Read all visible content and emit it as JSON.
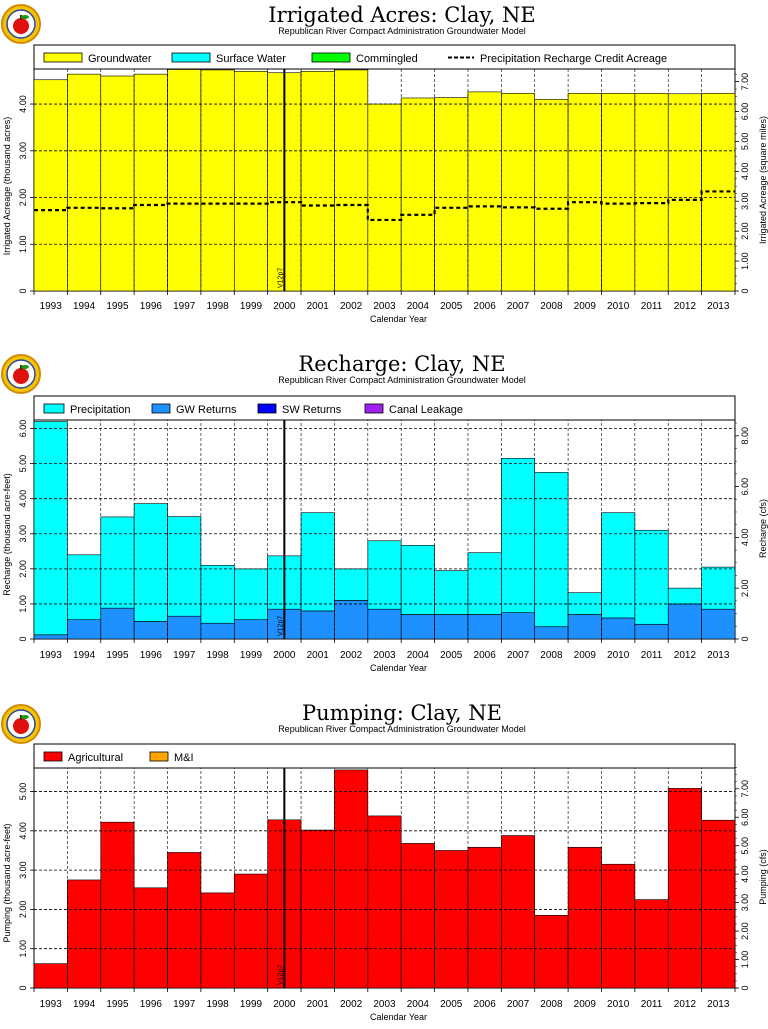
{
  "chart_data": [
    {
      "type": "bar",
      "title": "Irrigated Acres: Clay, NE",
      "subtitle": "Republican River Compact Administration Groundwater Model",
      "xlabel": "Calendar Year",
      "ylabel": "Irrigated Acreage (thousand acres)",
      "y2label": "Irrigated Acreage (square miles)",
      "ylim": [
        0,
        4.75
      ],
      "y2lim": [
        0,
        7.42
      ],
      "yticks": [
        0,
        1.0,
        2.0,
        3.0,
        4.0
      ],
      "ytick_labels": [
        "0",
        "1.00",
        "2.00",
        "3.00",
        "4.00"
      ],
      "y2ticks": [
        0,
        1,
        2,
        3,
        4,
        5,
        6,
        7
      ],
      "y2tick_labels": [
        "0",
        "1.00",
        "2.00",
        "3.00",
        "4.00",
        "5.00",
        "6.00",
        "7.00"
      ],
      "categories": [
        "1993",
        "1994",
        "1995",
        "1996",
        "1997",
        "1998",
        "1999",
        "2000",
        "2001",
        "2002",
        "2003",
        "2004",
        "2005",
        "2006",
        "2007",
        "2008",
        "2009",
        "2010",
        "2011",
        "2012",
        "2013"
      ],
      "legend_position": "top",
      "grid": true,
      "marker": {
        "label": "V12p7",
        "x_fraction": 0.5,
        "category": "2000"
      },
      "series": [
        {
          "name": "Groundwater",
          "color": "#ffff00",
          "values": [
            4.52,
            4.64,
            4.6,
            4.64,
            4.74,
            4.73,
            4.7,
            4.67,
            4.7,
            4.73,
            4.0,
            4.13,
            4.14,
            4.26,
            4.23,
            4.1,
            4.23,
            4.23,
            4.23,
            4.22,
            4.23
          ]
        },
        {
          "name": "Surface Water",
          "color": "#00ffff",
          "values": [
            0,
            0,
            0,
            0,
            0,
            0,
            0,
            0,
            0,
            0,
            0,
            0,
            0,
            0,
            0,
            0,
            0,
            0,
            0,
            0,
            0
          ]
        },
        {
          "name": "Commingled",
          "color": "#00ff00",
          "values": [
            0,
            0,
            0,
            0,
            0,
            0,
            0,
            0,
            0,
            0,
            0,
            0,
            0,
            0,
            0,
            0,
            0,
            0,
            0,
            0,
            0
          ]
        }
      ],
      "line_series": {
        "name": "Precipitation Recharge Credit Acreage",
        "values": [
          1.73,
          1.78,
          1.77,
          1.84,
          1.87,
          1.87,
          1.87,
          1.9,
          1.83,
          1.84,
          1.52,
          1.63,
          1.78,
          1.81,
          1.79,
          1.76,
          1.9,
          1.87,
          1.88,
          1.95,
          2.13
        ]
      }
    },
    {
      "type": "bar",
      "title": "Recharge: Clay, NE",
      "subtitle": "Republican River Compact Administration Groundwater Model",
      "xlabel": "Calendar Year",
      "ylabel": "Recharge (thousand acre-feet)",
      "y2label": "Recharge (cfs)",
      "ylim": [
        0,
        6.3
      ],
      "y2lim": [
        0,
        8.7
      ],
      "yticks": [
        0,
        1.0,
        2.0,
        3.0,
        4.0,
        5.0,
        6.0
      ],
      "ytick_labels": [
        "0",
        "1.00",
        "2.00",
        "3.00",
        "4.00",
        "5.00",
        "6.00"
      ],
      "y2ticks": [
        0,
        2,
        4,
        6,
        8
      ],
      "y2tick_labels": [
        "0",
        "2.00",
        "4.00",
        "6.00",
        "8.00"
      ],
      "categories": [
        "1993",
        "1994",
        "1995",
        "1996",
        "1997",
        "1998",
        "1999",
        "2000",
        "2001",
        "2002",
        "2003",
        "2004",
        "2005",
        "2006",
        "2007",
        "2008",
        "2009",
        "2010",
        "2011",
        "2012",
        "2013"
      ],
      "legend_position": "top",
      "grid": true,
      "marker": {
        "label": "V12p7",
        "x_fraction": 0.5,
        "category": "2000"
      },
      "series": [
        {
          "name": "GW Returns",
          "color": "#1e90ff",
          "values": [
            0.12,
            0.55,
            0.88,
            0.5,
            0.65,
            0.45,
            0.55,
            0.85,
            0.8,
            1.1,
            0.85,
            0.7,
            0.7,
            0.7,
            0.75,
            0.35,
            0.7,
            0.6,
            0.42,
            1.0,
            0.85
          ]
        },
        {
          "name": "SW Returns",
          "color": "#0000ff",
          "values": [
            0,
            0,
            0,
            0,
            0,
            0,
            0,
            0,
            0,
            0,
            0,
            0,
            0,
            0,
            0,
            0,
            0,
            0,
            0,
            0,
            0
          ]
        },
        {
          "name": "Canal Leakage",
          "color": "#a020f0",
          "values": [
            0,
            0,
            0,
            0,
            0,
            0,
            0,
            0,
            0,
            0,
            0,
            0,
            0,
            0,
            0,
            0,
            0,
            0,
            0,
            0,
            0
          ]
        },
        {
          "name": "Precipitation",
          "color": "#00ffff",
          "values": [
            6.08,
            1.85,
            2.6,
            3.36,
            2.84,
            1.65,
            1.45,
            1.52,
            2.8,
            0.9,
            1.95,
            1.97,
            1.25,
            1.76,
            4.4,
            4.4,
            0.62,
            3.0,
            2.68,
            0.45,
            1.2
          ]
        }
      ]
    },
    {
      "type": "bar",
      "title": "Pumping: Clay, NE",
      "subtitle": "Republican River Compact Administration Groundwater Model",
      "xlabel": "Calendar Year",
      "ylabel": "Pumping (thousand acre-feet)",
      "y2label": "Pumping (cfs)",
      "ylim": [
        0,
        5.65
      ],
      "y2lim": [
        0,
        7.8
      ],
      "yticks": [
        0,
        1.0,
        2.0,
        3.0,
        4.0,
        5.0
      ],
      "ytick_labels": [
        "0",
        "1.00",
        "2.00",
        "3.00",
        "4.00",
        "5.00"
      ],
      "y2ticks": [
        0,
        1,
        2,
        3,
        4,
        5,
        6,
        7
      ],
      "y2tick_labels": [
        "0",
        "1.00",
        "2.00",
        "3.00",
        "4.00",
        "5.00",
        "6.00",
        "7.00"
      ],
      "categories": [
        "1993",
        "1994",
        "1995",
        "1996",
        "1997",
        "1998",
        "1999",
        "2000",
        "2001",
        "2002",
        "2003",
        "2004",
        "2005",
        "2006",
        "2007",
        "2008",
        "2009",
        "2010",
        "2011",
        "2012",
        "2013"
      ],
      "legend_position": "top",
      "grid": true,
      "marker": {
        "label": "V12p7",
        "x_fraction": 0.5,
        "category": "2000"
      },
      "series": [
        {
          "name": "Agricultural",
          "color": "#ff0000",
          "values": [
            0.62,
            2.75,
            4.22,
            2.55,
            3.45,
            2.42,
            2.9,
            4.28,
            4.02,
            5.55,
            4.38,
            3.68,
            3.5,
            3.58,
            3.88,
            1.85,
            3.58,
            3.15,
            2.25,
            5.08,
            4.27
          ]
        },
        {
          "name": "M&I",
          "color": "#ffa500",
          "values": [
            0,
            0,
            0,
            0,
            0,
            0,
            0,
            0,
            0,
            0,
            0,
            0,
            0,
            0,
            0,
            0,
            0,
            0,
            0,
            0,
            0
          ]
        }
      ]
    }
  ]
}
